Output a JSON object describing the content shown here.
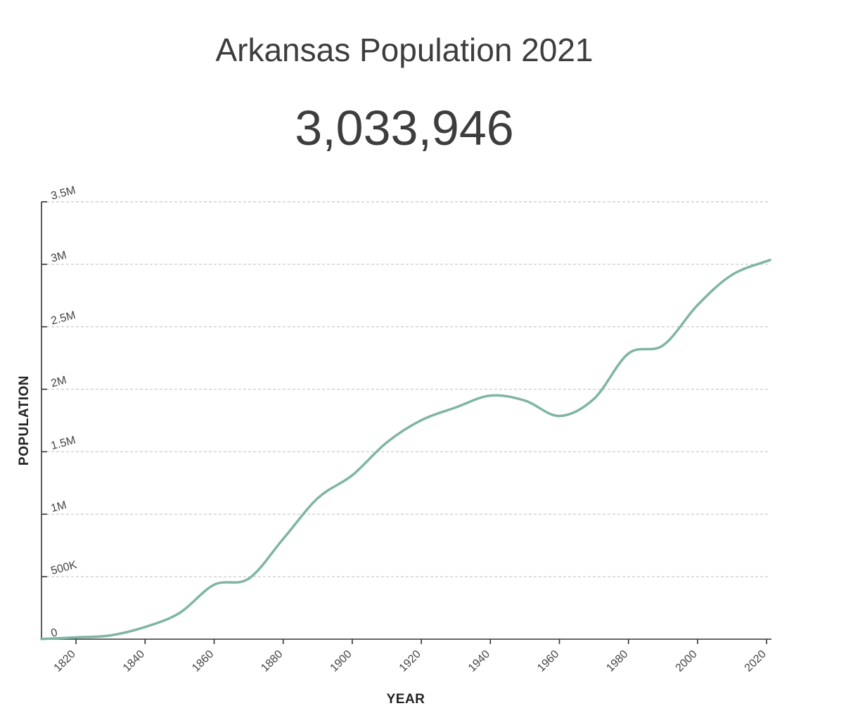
{
  "header": {
    "title": "Arkansas Population 2021",
    "current_value": "3,033,946"
  },
  "colors": {
    "line": "#7fb5a5"
  },
  "chart_data": {
    "type": "line",
    "title": "Arkansas Population 2021",
    "xlabel": "YEAR",
    "ylabel": "POPULATION",
    "xlim": [
      1810,
      2021
    ],
    "ylim": [
      0,
      3500000
    ],
    "x_ticks": [
      1820,
      1840,
      1860,
      1880,
      1900,
      1920,
      1940,
      1960,
      1980,
      2000,
      2020
    ],
    "y_ticks": [
      0,
      500000,
      1000000,
      1500000,
      2000000,
      2500000,
      3000000,
      3500000
    ],
    "y_tick_labels": [
      "0",
      "500K",
      "1M",
      "1.5M",
      "2M",
      "2.5M",
      "3M",
      "3.5M"
    ],
    "grid": true,
    "series": [
      {
        "name": "Population",
        "x": [
          1810,
          1820,
          1830,
          1840,
          1850,
          1860,
          1870,
          1880,
          1890,
          1900,
          1910,
          1920,
          1930,
          1940,
          1950,
          1960,
          1970,
          1980,
          1990,
          2000,
          2010,
          2021
        ],
        "values": [
          1062,
          14273,
          30388,
          97574,
          209897,
          435450,
          484471,
          802525,
          1128211,
          1311564,
          1574449,
          1752204,
          1854482,
          1949387,
          1909511,
          1786272,
          1923295,
          2286435,
          2350725,
          2673400,
          2915918,
          3033946
        ]
      }
    ]
  }
}
